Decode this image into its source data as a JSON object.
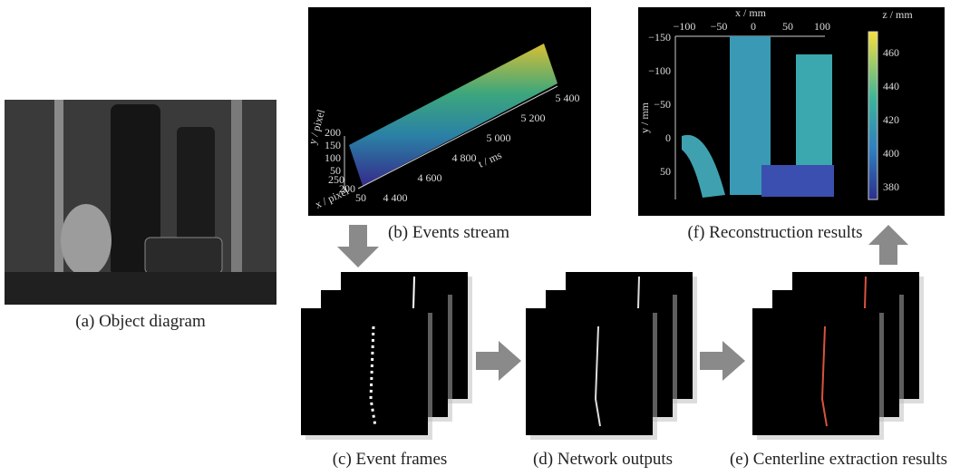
{
  "panels": {
    "a": {
      "caption": "(a) Object diagram"
    },
    "b": {
      "caption": "(b) Events stream",
      "y_label": "y / pixel",
      "x_label": "x / pixel",
      "t_label": "t / ms",
      "y_ticks": [
        "200",
        "150",
        "100",
        "50"
      ],
      "x_ticks": [
        "250",
        "200",
        "50"
      ],
      "t_ticks": [
        "4 400",
        "4 600",
        "4 800",
        "5 000",
        "5 200",
        "5 400"
      ]
    },
    "c": {
      "caption": "(c) Event frames"
    },
    "d": {
      "caption": "(d) Network outputs"
    },
    "e": {
      "caption": "(e) Centerline extraction results"
    },
    "f": {
      "caption": "(f) Reconstruction results",
      "x_label": "x / mm",
      "y_label": "y / mm",
      "z_label": "z / mm",
      "x_ticks": [
        "−100",
        "−50",
        "0",
        "50",
        "100"
      ],
      "y_ticks": [
        "−150",
        "−100",
        "−50",
        "0",
        "50"
      ],
      "z_ticks": [
        "460",
        "440",
        "420",
        "400",
        "380"
      ]
    }
  }
}
